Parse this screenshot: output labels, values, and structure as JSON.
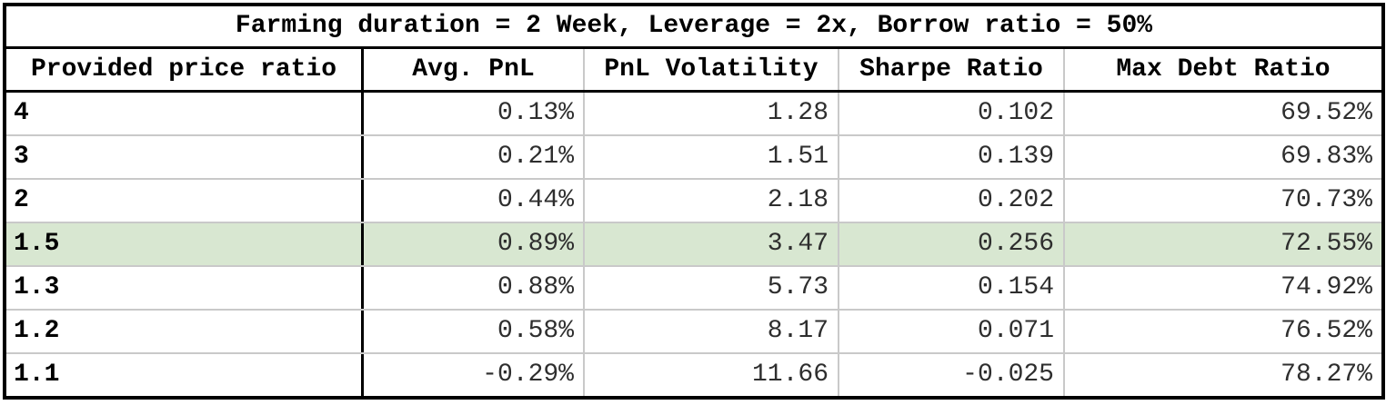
{
  "chart_data": {
    "type": "table",
    "title": "Farming duration = 2 Week, Leverage = 2x, Borrow ratio = 50%",
    "columns": [
      "Provided price ratio",
      "Avg. PnL",
      "PnL Volatility",
      "Sharpe Ratio",
      "Max Debt Ratio"
    ],
    "rows": [
      {
        "cells": [
          "4",
          "0.13%",
          "1.28",
          "0.102",
          "69.52%"
        ],
        "highlighted": false
      },
      {
        "cells": [
          "3",
          "0.21%",
          "1.51",
          "0.139",
          "69.83%"
        ],
        "highlighted": false
      },
      {
        "cells": [
          "2",
          "0.44%",
          "2.18",
          "0.202",
          "70.73%"
        ],
        "highlighted": false
      },
      {
        "cells": [
          "1.5",
          "0.89%",
          "3.47",
          "0.256",
          "72.55%"
        ],
        "highlighted": true
      },
      {
        "cells": [
          "1.3",
          "0.88%",
          "5.73",
          "0.154",
          "74.92%"
        ],
        "highlighted": false
      },
      {
        "cells": [
          "1.2",
          "0.58%",
          "8.17",
          "0.071",
          "76.52%"
        ],
        "highlighted": false
      },
      {
        "cells": [
          "1.1",
          "-0.29%",
          "11.66",
          "-0.025",
          "78.27%"
        ],
        "highlighted": false
      }
    ],
    "highlighted_row": "1.5",
    "layout": {
      "grid": "on",
      "title_position": "top"
    }
  },
  "colors": {
    "highlight": "#d8e7d1",
    "border": "#000000",
    "grid_light": "#c9c9c9"
  }
}
